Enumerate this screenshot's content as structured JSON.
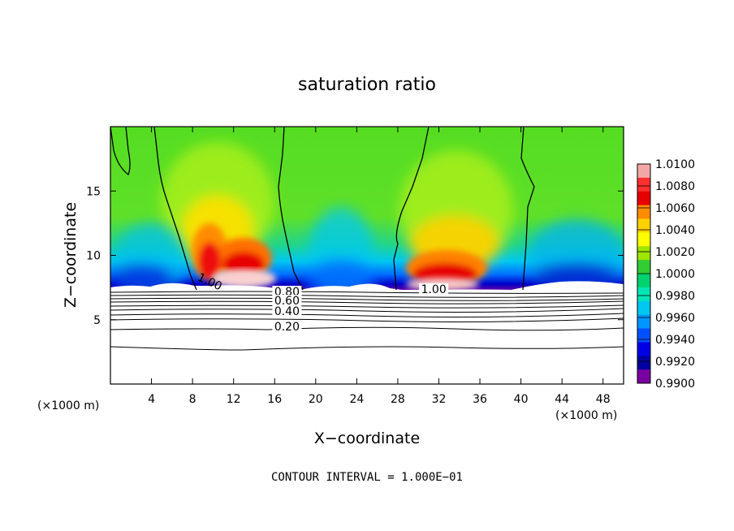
{
  "chart_data": {
    "type": "heatmap",
    "title": "saturation ratio",
    "xlabel": "X−coordinate",
    "ylabel": "Z−coordinate",
    "x_unit_left": "(×1000 m)",
    "x_unit_right": "(×1000 m)",
    "footer": "CONTOUR INTERVAL = 1.000E−01",
    "xlim": [
      0,
      50
    ],
    "ylim": [
      0,
      20
    ],
    "xticks": [
      4,
      8,
      12,
      16,
      20,
      24,
      28,
      32,
      36,
      40,
      44,
      48
    ],
    "yticks": [
      5,
      10,
      15
    ],
    "colorbar": {
      "labels": [
        "1.0100",
        "1.0080",
        "1.0060",
        "1.0040",
        "1.0020",
        "1.0000",
        "0.9980",
        "0.9960",
        "0.9940",
        "0.9920",
        "0.9900"
      ],
      "range": [
        0.99,
        1.01
      ],
      "colors": [
        "#f4a6a6",
        "#ff3030",
        "#e60000",
        "#ff8c00",
        "#ffd200",
        "#ffff00",
        "#9ee600",
        "#32cd32",
        "#00d26e",
        "#00e6b4",
        "#00c8f0",
        "#0096ff",
        "#0050ff",
        "#0000e6",
        "#0000a0",
        "#7800a0"
      ]
    },
    "contour_labels": [
      {
        "text": "1.00",
        "x": 9.6,
        "z": 7.8
      },
      {
        "text": "1.00",
        "x": 31.5,
        "z": 7.2
      },
      {
        "text": "0.80",
        "x": 17.2,
        "z": 7.0
      },
      {
        "text": "0.60",
        "x": 17.2,
        "z": 6.3
      },
      {
        "text": "0.40",
        "x": 17.2,
        "z": 5.5
      },
      {
        "text": "0.20",
        "x": 17.2,
        "z": 4.3
      }
    ]
  }
}
